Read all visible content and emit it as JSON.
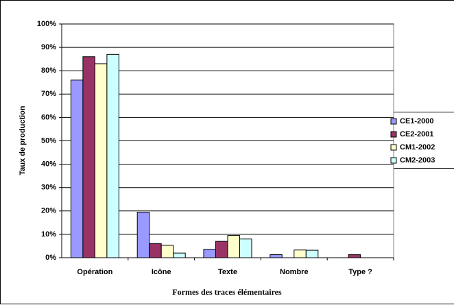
{
  "chart_data": {
    "type": "bar",
    "x_label": "Formes des traces élémentaires",
    "y_label": "Taux de production",
    "categories": [
      "Opération",
      "Icône",
      "Texte",
      "Nombre",
      "Type ?"
    ],
    "series": [
      {
        "name": "CE1-2000",
        "color": "#9999ff",
        "values": [
          76,
          19.5,
          3.6,
          1.3,
          0
        ]
      },
      {
        "name": "CE2-2001",
        "color": "#993366",
        "values": [
          86,
          6,
          7,
          0,
          1.3
        ]
      },
      {
        "name": "CM1-2002",
        "color": "#ffffcc",
        "values": [
          83,
          5.3,
          9.5,
          3.3,
          0
        ]
      },
      {
        "name": "CM2-2003",
        "color": "#ccffff",
        "values": [
          87,
          2,
          8,
          3.2,
          0
        ]
      }
    ],
    "ylim": [
      0,
      100
    ],
    "yticks": [
      {
        "value": 0,
        "label": "0%"
      },
      {
        "value": 10,
        "label": "10%"
      },
      {
        "value": 20,
        "label": "20%"
      },
      {
        "value": 30,
        "label": "30%"
      },
      {
        "value": 40,
        "label": "40%"
      },
      {
        "value": 50,
        "label": "50%"
      },
      {
        "value": 60,
        "label": "60%"
      },
      {
        "value": 70,
        "label": "70%"
      },
      {
        "value": 80,
        "label": "80%"
      },
      {
        "value": 90,
        "label": "90%"
      },
      {
        "value": 100,
        "label": "100%"
      }
    ],
    "grid": true,
    "legend": "right"
  }
}
